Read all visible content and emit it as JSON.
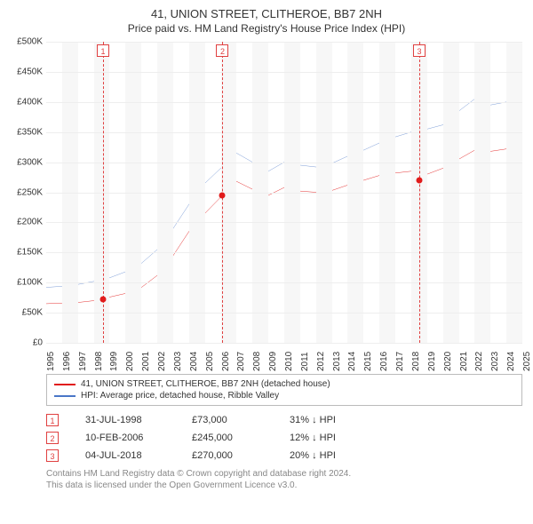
{
  "title": "41, UNION STREET, CLITHEROE, BB7 2NH",
  "subtitle": "Price paid vs. HM Land Registry's House Price Index (HPI)",
  "chart": {
    "type": "line",
    "background_color": "#ffffff",
    "grid_color": "#eeeeee",
    "altband_color": "#f7f7f7",
    "x_years": [
      1995,
      1996,
      1997,
      1998,
      1999,
      2000,
      2001,
      2002,
      2003,
      2004,
      2005,
      2006,
      2007,
      2008,
      2009,
      2010,
      2011,
      2012,
      2013,
      2014,
      2015,
      2016,
      2017,
      2018,
      2019,
      2020,
      2021,
      2022,
      2023,
      2024,
      2025
    ],
    "ylim": [
      0,
      500000
    ],
    "ytick_step": 50000,
    "yticks": [
      "£0",
      "£50K",
      "£100K",
      "£150K",
      "£200K",
      "£250K",
      "£300K",
      "£350K",
      "£400K",
      "£450K",
      "£500K"
    ],
    "series": [
      {
        "name": "41, UNION STREET, CLITHEROE, BB7 2NH (detached house)",
        "color": "#e11b1b",
        "width": 1.5,
        "points": [
          [
            1995,
            65000
          ],
          [
            1996,
            66000
          ],
          [
            1997,
            67000
          ],
          [
            1998,
            70000
          ],
          [
            1998.58,
            73000
          ],
          [
            1999,
            76000
          ],
          [
            2000,
            82000
          ],
          [
            2001,
            92000
          ],
          [
            2002,
            112000
          ],
          [
            2003,
            145000
          ],
          [
            2004,
            185000
          ],
          [
            2005,
            215000
          ],
          [
            2006.11,
            245000
          ],
          [
            2007,
            268000
          ],
          [
            2008,
            255000
          ],
          [
            2009,
            245000
          ],
          [
            2010,
            258000
          ],
          [
            2011,
            252000
          ],
          [
            2012,
            250000
          ],
          [
            2013,
            253000
          ],
          [
            2014,
            262000
          ],
          [
            2015,
            270000
          ],
          [
            2016,
            278000
          ],
          [
            2017,
            282000
          ],
          [
            2018,
            285000
          ],
          [
            2018.51,
            270000
          ],
          [
            2019,
            280000
          ],
          [
            2020,
            290000
          ],
          [
            2021,
            305000
          ],
          [
            2022,
            320000
          ],
          [
            2023,
            318000
          ],
          [
            2024,
            322000
          ],
          [
            2025,
            330000
          ]
        ]
      },
      {
        "name": "HPI: Average price, detached house, Ribble Valley",
        "color": "#4a76c7",
        "width": 1.2,
        "points": [
          [
            1995,
            92000
          ],
          [
            1996,
            94000
          ],
          [
            1997,
            97000
          ],
          [
            1998,
            102000
          ],
          [
            1999,
            108000
          ],
          [
            2000,
            118000
          ],
          [
            2001,
            132000
          ],
          [
            2002,
            155000
          ],
          [
            2003,
            190000
          ],
          [
            2004,
            230000
          ],
          [
            2005,
            265000
          ],
          [
            2006,
            290000
          ],
          [
            2007,
            315000
          ],
          [
            2008,
            300000
          ],
          [
            2009,
            285000
          ],
          [
            2010,
            300000
          ],
          [
            2011,
            295000
          ],
          [
            2012,
            292000
          ],
          [
            2013,
            298000
          ],
          [
            2014,
            310000
          ],
          [
            2015,
            320000
          ],
          [
            2016,
            332000
          ],
          [
            2017,
            342000
          ],
          [
            2018,
            350000
          ],
          [
            2019,
            355000
          ],
          [
            2020,
            362000
          ],
          [
            2021,
            385000
          ],
          [
            2022,
            405000
          ],
          [
            2023,
            395000
          ],
          [
            2024,
            400000
          ],
          [
            2025,
            410000
          ]
        ]
      }
    ],
    "markers": [
      {
        "n": "1",
        "x": 1998.58,
        "y": 73000,
        "date": "31-JUL-1998",
        "price": "£73,000",
        "diff": "31% ↓ HPI"
      },
      {
        "n": "2",
        "x": 2006.11,
        "y": 245000,
        "date": "10-FEB-2006",
        "price": "£245,000",
        "diff": "12% ↓ HPI"
      },
      {
        "n": "3",
        "x": 2018.51,
        "y": 270000,
        "date": "04-JUL-2018",
        "price": "£270,000",
        "diff": "20% ↓ HPI"
      }
    ],
    "marker_color": "#e04040",
    "dot_color": "#e11b1b"
  },
  "footer_line1": "Contains HM Land Registry data © Crown copyright and database right 2024.",
  "footer_line2": "This data is licensed under the Open Government Licence v3.0."
}
